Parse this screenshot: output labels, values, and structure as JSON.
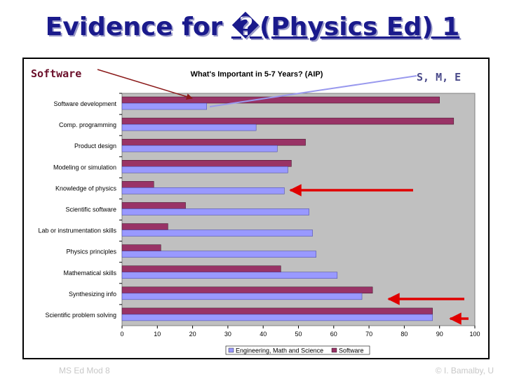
{
  "slide": {
    "title_prefix": "Evidence for ",
    "title_main": "�(Physics Ed) 1",
    "callout_left": "Software",
    "callout_right": "S, M, E",
    "footer_left": "MS Ed Mod 8",
    "footer_right": "© I. Bamalby, U"
  },
  "colors": {
    "software": "#993366",
    "ems": "#9999ff",
    "plot_bg": "#c0c0c0",
    "arrow_red": "#e00000",
    "arrow_dark": "#8b1a1a",
    "arrow_light": "#9999ee"
  },
  "chart_data": {
    "type": "bar",
    "orientation": "horizontal",
    "title": "What's Important in 5-7 Years? (AIP)",
    "categories": [
      "Software development",
      "Comp. programming",
      "Product design",
      "Modeling or simulation",
      "Knowledge of physics",
      "Scientific software",
      "Lab or instrumentation skills",
      "Physics principles",
      "Mathematical skills",
      "Synthesizing info",
      "Scientific problem solving"
    ],
    "series": [
      {
        "name": "Software",
        "values": [
          90,
          94,
          52,
          48,
          9,
          18,
          13,
          11,
          45,
          71,
          88
        ]
      },
      {
        "name": "Engineering, Math and Science",
        "values": [
          24,
          38,
          44,
          47,
          46,
          53,
          54,
          55,
          61,
          68,
          88
        ]
      }
    ],
    "legend_order": [
      "Engineering, Math and Science",
      "Software"
    ],
    "xlim": [
      0,
      100
    ],
    "xticks": [
      0,
      10,
      20,
      30,
      40,
      50,
      60,
      70,
      80,
      90,
      100
    ],
    "xlabel": "",
    "ylabel": "",
    "grid": false,
    "legend_position": "bottom"
  }
}
